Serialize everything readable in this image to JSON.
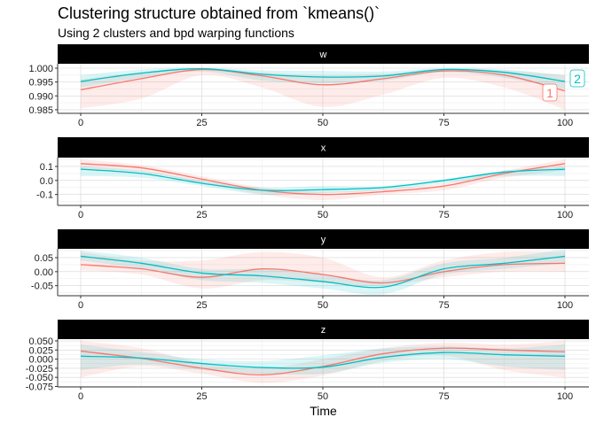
{
  "chart_data": {
    "type": "line",
    "title": "Clustering structure obtained from `kmeans()`",
    "subtitle": "Using 2 clusters and bpd warping functions",
    "xlabel": "Time",
    "xlim": [
      0,
      100
    ],
    "x_ticks": [
      "0",
      "25",
      "50",
      "75",
      "100"
    ],
    "x": [
      0,
      12.5,
      25,
      37.5,
      50,
      62.5,
      75,
      87.5,
      100
    ],
    "grid": true,
    "colors": {
      "1": "#F8766D",
      "2": "#00BFC4"
    },
    "cluster_labels": [
      "1",
      "2"
    ],
    "facets": [
      {
        "name": "w",
        "ylim": [
          0.9837,
          1.0016
        ],
        "y_ticks": [
          1.0,
          0.995,
          0.99,
          0.985
        ],
        "y_tick_labels": [
          "1.000",
          "0.995",
          "0.990",
          "0.985"
        ],
        "series": [
          {
            "name": "1",
            "mean": [
              0.9922,
              0.9962,
              0.9995,
              0.9972,
              0.994,
              0.9962,
              0.999,
              0.9975,
              0.9918
            ],
            "lower": [
              0.9855,
              0.989,
              0.9975,
              0.993,
              0.986,
              0.9905,
              0.9965,
              0.993,
              0.985
            ],
            "upper": [
              0.996,
              0.9985,
              1.0,
              0.9985,
              0.9975,
              0.998,
              0.9998,
              0.9992,
              0.9975
            ]
          },
          {
            "name": "2",
            "mean": [
              0.9952,
              0.9982,
              0.9998,
              0.9978,
              0.9968,
              0.9972,
              0.9995,
              0.9985,
              0.9952
            ],
            "lower": [
              0.993,
              0.9965,
              0.9988,
              0.9955,
              0.9945,
              0.9955,
              0.9985,
              0.9965,
              0.9925
            ],
            "upper": [
              0.9975,
              0.9995,
              1.0002,
              0.9992,
              0.999,
              0.9988,
              1.0,
              0.9995,
              0.9975
            ]
          }
        ]
      },
      {
        "name": "x",
        "ylim": [
          -0.178,
          0.163
        ],
        "y_ticks": [
          0.1,
          0.0,
          -0.1
        ],
        "y_tick_labels": [
          "0.1",
          "0.0",
          "-0.1"
        ],
        "series": [
          {
            "name": "1",
            "mean": [
              0.12,
              0.09,
              0.01,
              -0.07,
              -0.1,
              -0.08,
              -0.04,
              0.05,
              0.12
            ],
            "lower": [
              0.08,
              0.06,
              -0.02,
              -0.1,
              -0.14,
              -0.1,
              -0.07,
              0.02,
              0.07
            ],
            "upper": [
              0.15,
              0.11,
              0.03,
              -0.05,
              -0.08,
              -0.06,
              -0.02,
              0.07,
              0.15
            ]
          },
          {
            "name": "2",
            "mean": [
              0.08,
              0.05,
              -0.02,
              -0.07,
              -0.065,
              -0.05,
              0.0,
              0.06,
              0.08
            ],
            "lower": [
              0.03,
              0.02,
              -0.04,
              -0.1,
              -0.09,
              -0.07,
              -0.02,
              0.03,
              0.03
            ],
            "upper": [
              0.1,
              0.07,
              0.0,
              -0.05,
              -0.04,
              -0.04,
              0.01,
              0.07,
              0.1
            ]
          }
        ]
      },
      {
        "name": "y",
        "ylim": [
          -0.0857,
          0.0815
        ],
        "y_ticks": [
          0.05,
          0.0,
          -0.05
        ],
        "y_tick_labels": [
          "0.05",
          "0.00",
          "-0.05"
        ],
        "series": [
          {
            "name": "1",
            "mean": [
              0.025,
              0.01,
              -0.02,
              0.01,
              -0.01,
              -0.04,
              0.0,
              0.025,
              0.03
            ],
            "lower": [
              0.005,
              -0.01,
              -0.06,
              -0.03,
              -0.04,
              -0.05,
              -0.02,
              0.0,
              0.0
            ],
            "upper": [
              0.07,
              0.04,
              0.04,
              0.07,
              0.05,
              -0.02,
              0.04,
              0.07,
              0.07
            ]
          },
          {
            "name": "2",
            "mean": [
              0.055,
              0.03,
              -0.005,
              -0.015,
              -0.035,
              -0.055,
              0.01,
              0.03,
              0.055
            ],
            "lower": [
              0.04,
              0.01,
              -0.03,
              -0.04,
              -0.06,
              -0.08,
              -0.01,
              0.01,
              0.03
            ],
            "upper": [
              0.075,
              0.05,
              0.01,
              0.01,
              -0.01,
              -0.03,
              0.03,
              0.05,
              0.08
            ]
          }
        ]
      },
      {
        "name": "z",
        "ylim": [
          -0.0762,
          0.0549
        ],
        "y_ticks": [
          0.05,
          0.025,
          0.0,
          -0.025,
          -0.05,
          -0.075
        ],
        "y_tick_labels": [
          "0.050",
          "0.025",
          "0.000",
          "-0.025",
          "-0.050",
          "-0.075"
        ],
        "series": [
          {
            "name": "1",
            "mean": [
              0.022,
              0.002,
              -0.025,
              -0.043,
              -0.02,
              0.015,
              0.03,
              0.025,
              0.02
            ],
            "lower": [
              -0.05,
              -0.02,
              -0.04,
              -0.065,
              -0.045,
              -0.005,
              0.01,
              -0.03,
              -0.05
            ],
            "upper": [
              0.05,
              0.03,
              -0.01,
              -0.025,
              0.0,
              0.03,
              0.045,
              0.04,
              0.05
            ]
          },
          {
            "name": "2",
            "mean": [
              0.008,
              0.003,
              -0.012,
              -0.023,
              -0.022,
              0.005,
              0.018,
              0.012,
              0.008
            ],
            "lower": [
              -0.03,
              -0.015,
              -0.03,
              -0.04,
              -0.04,
              -0.01,
              0.0,
              -0.02,
              -0.03
            ],
            "upper": [
              0.04,
              0.02,
              0.0,
              -0.005,
              0.01,
              0.03,
              0.035,
              0.03,
              0.04
            ]
          }
        ]
      }
    ]
  }
}
